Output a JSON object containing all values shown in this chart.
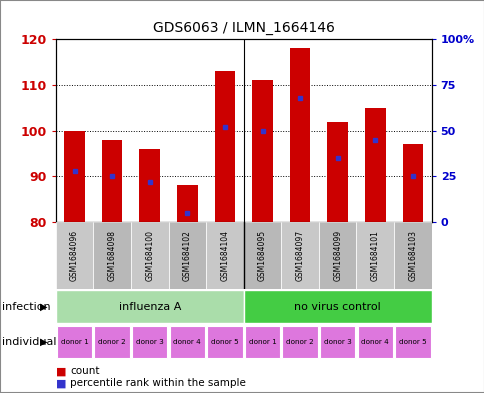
{
  "title": "GDS6063 / ILMN_1664146",
  "samples": [
    "GSM1684096",
    "GSM1684098",
    "GSM1684100",
    "GSM1684102",
    "GSM1684104",
    "GSM1684095",
    "GSM1684097",
    "GSM1684099",
    "GSM1684101",
    "GSM1684103"
  ],
  "counts": [
    100,
    98,
    96,
    88,
    113,
    111,
    118,
    102,
    105,
    97
  ],
  "percentile_ranks": [
    28,
    25,
    22,
    5,
    52,
    50,
    68,
    35,
    45,
    25
  ],
  "y_min": 80,
  "y_max": 120,
  "y_ticks": [
    80,
    90,
    100,
    110,
    120
  ],
  "right_y_ticks": [
    0,
    25,
    50,
    75,
    100
  ],
  "right_y_labels": [
    "0",
    "25",
    "50",
    "75",
    "100%"
  ],
  "bar_color": "#cc0000",
  "dot_color": "#3333cc",
  "bar_width": 0.55,
  "groups": [
    {
      "label": "influenza A",
      "start": 0,
      "end": 5,
      "color": "#aaddaa"
    },
    {
      "label": "no virus control",
      "start": 5,
      "end": 10,
      "color": "#44cc44"
    }
  ],
  "individuals": [
    "donor 1",
    "donor 2",
    "donor 3",
    "donor 4",
    "donor 5",
    "donor 1",
    "donor 2",
    "donor 3",
    "donor 4",
    "donor 5"
  ],
  "individual_color": "#dd77dd",
  "label_infection": "infection",
  "label_individual": "individual",
  "tick_color_left": "#cc0000",
  "tick_color_right": "#0000cc",
  "bg_sample_label": "#bbbbbb",
  "fig_border_color": "#888888"
}
